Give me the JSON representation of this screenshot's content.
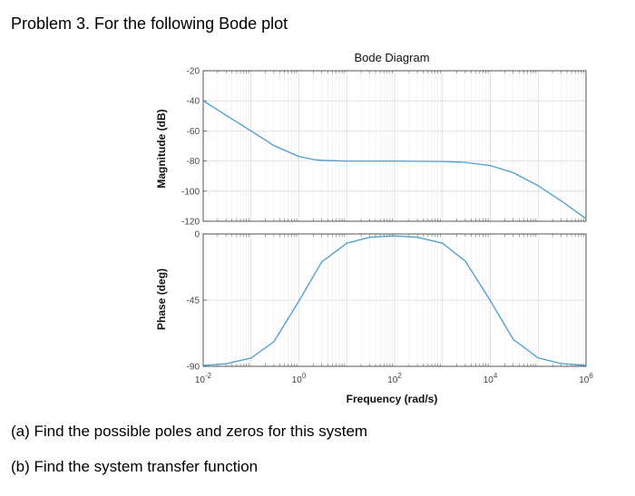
{
  "problem": {
    "title": "Problem 3. For the following Bode plot",
    "question_a": "(a) Find the possible poles and zeros for this system",
    "question_b": "(b) Find the system transfer function"
  },
  "chart_data": {
    "type": "line",
    "title": "Bode Diagram",
    "xlabel": "Frequency (rad/s)",
    "xscale": "log",
    "xlim": [
      0.01,
      1000000
    ],
    "x_ticks": [
      {
        "base": "10",
        "exp": "-2",
        "value": 0.01
      },
      {
        "base": "10",
        "exp": "0",
        "value": 1
      },
      {
        "base": "10",
        "exp": "2",
        "value": 100
      },
      {
        "base": "10",
        "exp": "4",
        "value": 10000
      },
      {
        "base": "10",
        "exp": "6",
        "value": 1000000
      }
    ],
    "grid": true,
    "line_color": "#4a9ed0",
    "subplots": [
      {
        "name": "magnitude",
        "ylabel": "Magnitude (dB)",
        "ylim": [
          -120,
          -20
        ],
        "yticks": [
          -20,
          -40,
          -60,
          -80,
          -100,
          -120
        ],
        "series": [
          {
            "x": [
              0.01,
              0.03,
              0.1,
              0.3,
              1,
              2,
              3,
              10,
              100,
              1000,
              3000,
              10000,
              30000,
              100000,
              300000,
              1000000
            ],
            "y": [
              -40,
              -49.6,
              -60.0,
              -69.7,
              -77.0,
              -79.0,
              -79.5,
              -80.0,
              -80.0,
              -80.3,
              -80.9,
              -83.0,
              -87.7,
              -96.4,
              -106.4,
              -118.3
            ]
          }
        ]
      },
      {
        "name": "phase",
        "ylabel": "Phase (deg)",
        "ylim": [
          -90,
          0
        ],
        "yticks": [
          0,
          -45,
          -90
        ],
        "series": [
          {
            "x": [
              0.01,
              0.03,
              0.1,
              0.3,
              1,
              3,
              10,
              30,
              100,
              300,
              1000,
              3000,
              10000,
              30000,
              100000,
              300000,
              1000000
            ],
            "y": [
              -89.4,
              -88.3,
              -84.3,
              -73.3,
              -45.6,
              -19.0,
              -6.3,
              -2.3,
              -1.3,
              -2.3,
              -6.3,
              -18.5,
              -45.3,
              -71.6,
              -84.3,
              -88.1,
              -89.4
            ]
          }
        ]
      }
    ]
  }
}
